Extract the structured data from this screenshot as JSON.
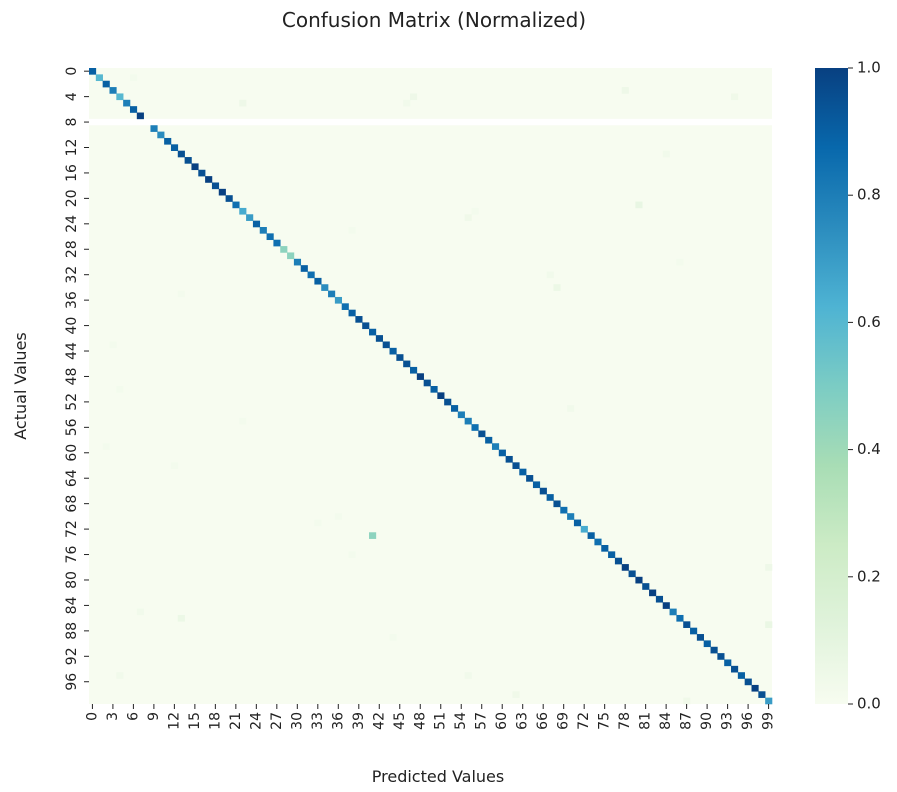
{
  "chart_data": {
    "type": "heatmap",
    "title": "Confusion Matrix (Normalized)",
    "xlabel": "Predicted Values",
    "ylabel": "Actual Values",
    "n_classes": 100,
    "x_ticks": [
      0,
      3,
      6,
      9,
      12,
      15,
      18,
      21,
      24,
      27,
      30,
      33,
      36,
      39,
      42,
      45,
      48,
      51,
      54,
      57,
      60,
      63,
      66,
      69,
      72,
      75,
      78,
      81,
      84,
      87,
      90,
      93,
      96,
      99
    ],
    "y_ticks": [
      0,
      4,
      8,
      12,
      16,
      20,
      24,
      28,
      32,
      36,
      40,
      44,
      48,
      52,
      56,
      60,
      64,
      68,
      72,
      76,
      80,
      84,
      88,
      92,
      96
    ],
    "colorbar": {
      "min": 0.0,
      "max": 1.0,
      "ticks": [
        "0.0",
        "0.2",
        "0.4",
        "0.6",
        "0.8",
        "1.0"
      ]
    },
    "colormap": [
      "#f7fcf0",
      "#e0f3db",
      "#ccebc5",
      "#a8ddb5",
      "#7bccc4",
      "#4eb3d3",
      "#2b8cbe",
      "#0868ac",
      "#084081"
    ],
    "diagonal": [
      0.9,
      0.6,
      0.9,
      0.8,
      0.6,
      0.8,
      0.9,
      1.0,
      null,
      0.8,
      0.75,
      0.9,
      0.9,
      0.95,
      0.95,
      1.0,
      0.95,
      1.0,
      0.95,
      1.0,
      0.95,
      0.85,
      0.65,
      0.7,
      0.9,
      0.8,
      0.85,
      0.85,
      0.45,
      0.45,
      0.8,
      0.9,
      0.85,
      0.9,
      0.75,
      0.8,
      0.7,
      0.85,
      0.9,
      0.95,
      0.95,
      0.9,
      0.95,
      0.95,
      0.9,
      0.95,
      0.95,
      0.9,
      1.0,
      0.95,
      0.9,
      1.0,
      0.95,
      0.9,
      0.8,
      0.8,
      0.85,
      0.95,
      0.9,
      0.8,
      0.9,
      0.95,
      0.95,
      0.9,
      0.95,
      0.9,
      0.95,
      0.9,
      0.95,
      0.85,
      0.8,
      0.9,
      0.65,
      0.9,
      0.85,
      0.9,
      0.9,
      0.95,
      1.0,
      0.95,
      1.0,
      0.95,
      1.0,
      0.95,
      1.0,
      0.8,
      0.85,
      0.95,
      0.9,
      0.95,
      0.9,
      0.95,
      0.95,
      0.9,
      0.95,
      0.9,
      0.95,
      1.0,
      0.95,
      0.7
    ],
    "off_diagonal": [
      {
        "actual": 1,
        "predicted": 6,
        "value": 0.02
      },
      {
        "actual": 5,
        "predicted": 22,
        "value": 0.05
      },
      {
        "actual": 4,
        "predicted": 47,
        "value": 0.05
      },
      {
        "actual": 5,
        "predicted": 46,
        "value": 0.03
      },
      {
        "actual": 3,
        "predicted": 78,
        "value": 0.05
      },
      {
        "actual": 4,
        "predicted": 94,
        "value": 0.04
      },
      {
        "actual": 13,
        "predicted": 84,
        "value": 0.03
      },
      {
        "actual": 21,
        "predicted": 80,
        "value": 0.08
      },
      {
        "actual": 23,
        "predicted": 55,
        "value": 0.04
      },
      {
        "actual": 22,
        "predicted": 56,
        "value": 0.02
      },
      {
        "actual": 25,
        "predicted": 38,
        "value": 0.02
      },
      {
        "actual": 34,
        "predicted": 68,
        "value": 0.06
      },
      {
        "actual": 32,
        "predicted": 67,
        "value": 0.03
      },
      {
        "actual": 35,
        "predicted": 13,
        "value": 0.02
      },
      {
        "actual": 30,
        "predicted": 86,
        "value": 0.02
      },
      {
        "actual": 43,
        "predicted": 3,
        "value": 0.02
      },
      {
        "actual": 50,
        "predicted": 4,
        "value": 0.02
      },
      {
        "actual": 53,
        "predicted": 70,
        "value": 0.03
      },
      {
        "actual": 55,
        "predicted": 22,
        "value": 0.02
      },
      {
        "actual": 59,
        "predicted": 2,
        "value": 0.02
      },
      {
        "actual": 62,
        "predicted": 12,
        "value": 0.02
      },
      {
        "actual": 65,
        "predicted": 66,
        "value": 0.02
      },
      {
        "actual": 70,
        "predicted": 36,
        "value": 0.02
      },
      {
        "actual": 71,
        "predicted": 33,
        "value": 0.02
      },
      {
        "actual": 73,
        "predicted": 41,
        "value": 0.45
      },
      {
        "actual": 76,
        "predicted": 38,
        "value": 0.02
      },
      {
        "actual": 78,
        "predicted": 99,
        "value": 0.05
      },
      {
        "actual": 86,
        "predicted": 13,
        "value": 0.06
      },
      {
        "actual": 85,
        "predicted": 7,
        "value": 0.03
      },
      {
        "actual": 87,
        "predicted": 99,
        "value": 0.07
      },
      {
        "actual": 89,
        "predicted": 44,
        "value": 0.02
      },
      {
        "actual": 95,
        "predicted": 4,
        "value": 0.03
      },
      {
        "actual": 95,
        "predicted": 55,
        "value": 0.03
      },
      {
        "actual": 98,
        "predicted": 62,
        "value": 0.04
      },
      {
        "actual": 99,
        "predicted": 87,
        "value": 0.04
      }
    ]
  }
}
